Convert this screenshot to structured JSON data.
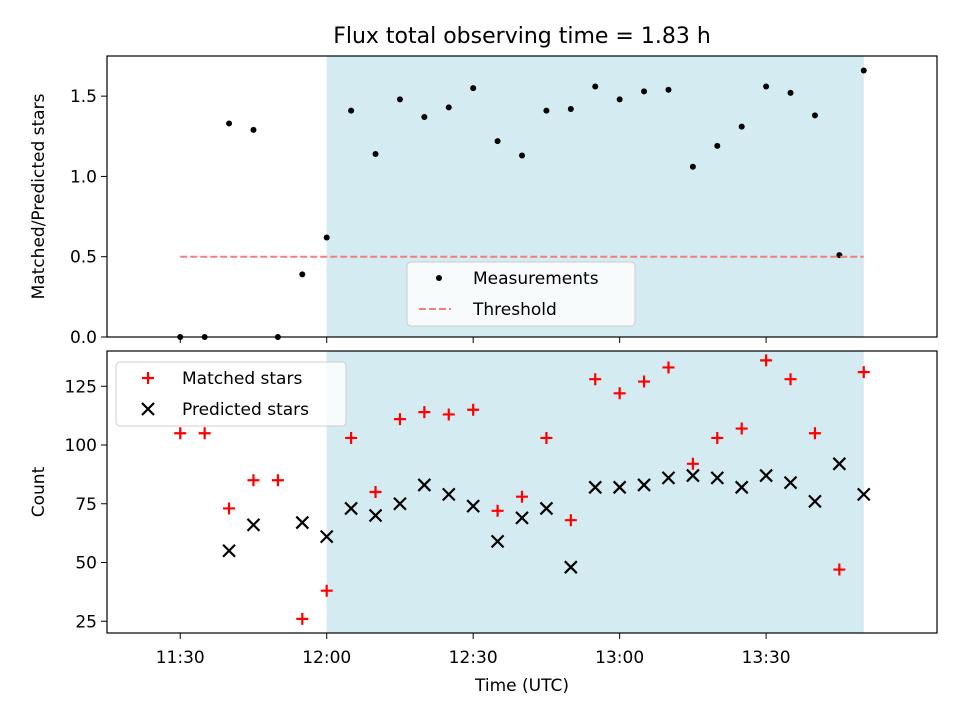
{
  "chart_data": {
    "title": "Flux total observing time = 1.83 h",
    "xlabel": "Time (UTC)",
    "x_ticks": [
      "11:30",
      "12:00",
      "12:30",
      "13:00",
      "13:30"
    ],
    "shaded_region": {
      "start": "12:00",
      "end": "13:50",
      "color": "#d4ebf1"
    },
    "panels": [
      {
        "type": "scatter",
        "ylabel": "Matched/Predicted stars",
        "ylim": [
          0,
          1.75
        ],
        "y_ticks": [
          "0.0",
          "0.5",
          "1.0",
          "1.5"
        ],
        "legend": {
          "position": "lower-center",
          "entries": [
            "Measurements",
            "Threshold"
          ]
        },
        "series": [
          {
            "name": "Measurements",
            "color": "#000000",
            "marker": "dot",
            "x": [
              "11:30",
              "11:35",
              "11:40",
              "11:45",
              "11:50",
              "11:55",
              "12:00",
              "12:05",
              "12:10",
              "12:15",
              "12:20",
              "12:25",
              "12:30",
              "12:35",
              "12:40",
              "12:45",
              "12:50",
              "12:55",
              "13:00",
              "13:05",
              "13:10",
              "13:15",
              "13:20",
              "13:25",
              "13:30",
              "13:35",
              "13:40",
              "13:45",
              "13:50"
            ],
            "y": [
              0.0,
              0.0,
              1.33,
              1.29,
              0.0,
              0.39,
              0.62,
              1.41,
              1.14,
              1.48,
              1.37,
              1.43,
              1.55,
              1.22,
              1.13,
              1.41,
              1.42,
              1.56,
              1.48,
              1.53,
              1.54,
              1.06,
              1.19,
              1.31,
              1.56,
              1.52,
              1.38,
              0.51,
              1.66
            ]
          },
          {
            "name": "Threshold",
            "color": "#f08080",
            "style": "dashed",
            "x": [
              "11:30",
              "13:50"
            ],
            "y": [
              0.5,
              0.5
            ]
          }
        ]
      },
      {
        "type": "scatter",
        "ylabel": "Count",
        "ylim": [
          20,
          140
        ],
        "y_ticks": [
          "25",
          "50",
          "75",
          "100",
          "125"
        ],
        "legend": {
          "position": "top-left",
          "entries": [
            "Matched stars",
            "Predicted stars"
          ]
        },
        "series": [
          {
            "name": "Matched stars",
            "color": "#ff0000",
            "marker": "plus",
            "x": [
              "11:30",
              "11:35",
              "11:40",
              "11:45",
              "11:50",
              "11:55",
              "12:00",
              "12:05",
              "12:10",
              "12:15",
              "12:20",
              "12:25",
              "12:30",
              "12:35",
              "12:40",
              "12:45",
              "12:50",
              "12:55",
              "13:00",
              "13:05",
              "13:10",
              "13:15",
              "13:20",
              "13:25",
              "13:30",
              "13:35",
              "13:40",
              "13:45",
              "13:50"
            ],
            "y": [
              105,
              105,
              73,
              85,
              85,
              26,
              38,
              103,
              80,
              111,
              114,
              113,
              115,
              72,
              78,
              103,
              68,
              128,
              122,
              127,
              133,
              92,
              103,
              107,
              136,
              128,
              105,
              47,
              131
            ]
          },
          {
            "name": "Predicted stars",
            "color": "#000000",
            "marker": "x",
            "x": [
              "11:40",
              "11:45",
              "11:55",
              "12:00",
              "12:05",
              "12:10",
              "12:15",
              "12:20",
              "12:25",
              "12:30",
              "12:35",
              "12:40",
              "12:45",
              "12:50",
              "12:55",
              "13:00",
              "13:05",
              "13:10",
              "13:15",
              "13:20",
              "13:25",
              "13:30",
              "13:35",
              "13:40",
              "13:45",
              "13:50"
            ],
            "y": [
              55,
              66,
              67,
              61,
              73,
              70,
              75,
              83,
              79,
              74,
              59,
              69,
              73,
              48,
              82,
              82,
              83,
              86,
              87,
              86,
              82,
              87,
              84,
              76,
              92,
              79
            ]
          }
        ]
      }
    ]
  }
}
